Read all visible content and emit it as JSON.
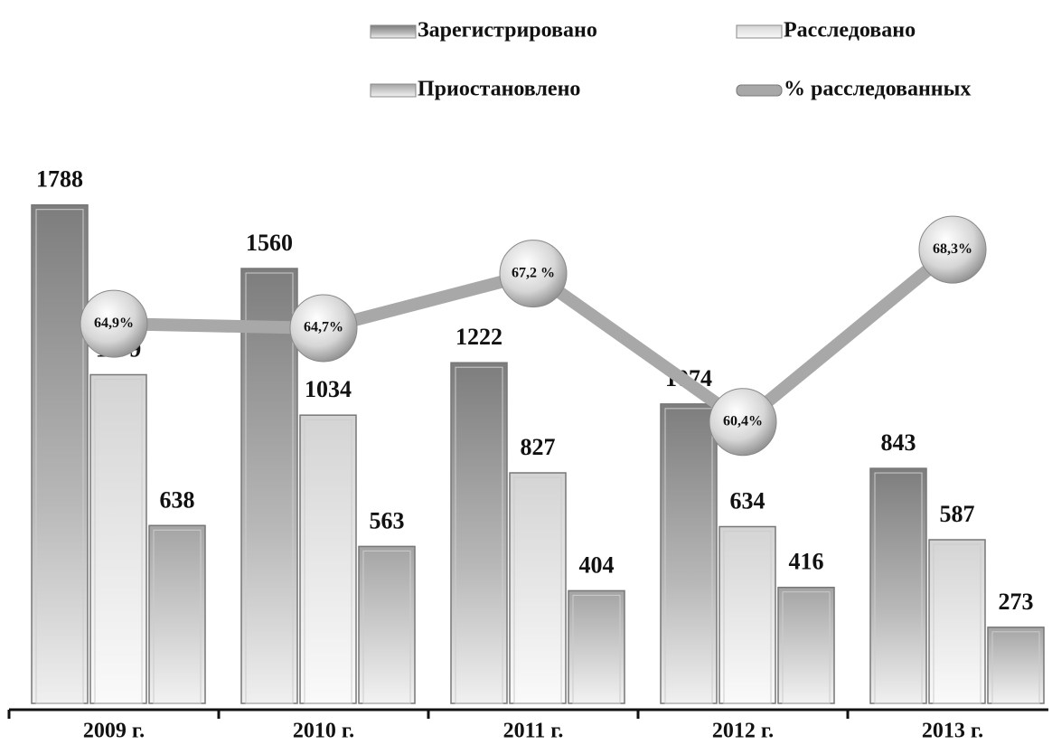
{
  "chart_data": {
    "type": "bar",
    "categories": [
      "2009 г.",
      "2010 г.",
      "2011 г.",
      "2012 г.",
      "2013 г."
    ],
    "series": [
      {
        "name": "Зарегистрировано",
        "color": "#9a9a9a",
        "values": [
          1788,
          1560,
          1222,
          1074,
          843
        ]
      },
      {
        "name": "Расследовано",
        "color": "#e4e4e4",
        "values": [
          1179,
          1034,
          827,
          634,
          587
        ]
      },
      {
        "name": "Приостановлено",
        "color": "#bdbdbd",
        "values": [
          638,
          563,
          404,
          416,
          273
        ]
      },
      {
        "name": "% расследованных",
        "type": "line",
        "axis": "y2",
        "color": "#a8a8a8",
        "values": [
          64.9,
          64.7,
          67.2,
          60.4,
          68.3
        ],
        "value_labels": [
          "64,9%",
          "64,7%",
          "67,2 %",
          "60,4%",
          "68,3%"
        ]
      }
    ],
    "ylim": [
      0,
      1800
    ],
    "y2lim": [
      47.5,
      70.5
    ],
    "legend": "top"
  }
}
